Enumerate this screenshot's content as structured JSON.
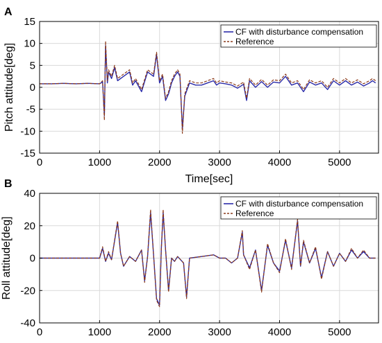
{
  "chart_data": [
    {
      "panel_label": "A",
      "type": "line",
      "xlabel": "Time[sec]",
      "ylabel": "Pitch attitude[deg]",
      "xlim": [
        0,
        5650
      ],
      "ylim": [
        -15,
        15
      ],
      "xticks": [
        "0",
        "1000",
        "2000",
        "3000",
        "4000",
        "5000"
      ],
      "xtick_values": [
        0,
        1000,
        2000,
        3000,
        4000,
        5000
      ],
      "yticks": [
        "-15",
        "-10",
        "-5",
        "0",
        "5",
        "10",
        "15"
      ],
      "ytick_values": [
        -15,
        -10,
        -5,
        0,
        5,
        10,
        15
      ],
      "grid": true,
      "legend_position": "top-right",
      "series": [
        {
          "name": "CF with disturbance compensation",
          "color": "#2a2aa8",
          "style": "solid",
          "x": [
            0,
            200,
            400,
            600,
            800,
            1000,
            1050,
            1080,
            1100,
            1130,
            1150,
            1200,
            1250,
            1300,
            1400,
            1500,
            1550,
            1600,
            1700,
            1800,
            1900,
            1950,
            2000,
            2050,
            2100,
            2150,
            2200,
            2250,
            2300,
            2340,
            2380,
            2420,
            2500,
            2600,
            2700,
            2800,
            2900,
            2950,
            3000,
            3100,
            3200,
            3300,
            3400,
            3450,
            3500,
            3600,
            3700,
            3800,
            3900,
            4000,
            4100,
            4200,
            4300,
            4400,
            4500,
            4600,
            4700,
            4800,
            4900,
            4950,
            5000,
            5100,
            5200,
            5300,
            5400,
            5500,
            5550,
            5600
          ],
          "y": [
            0.8,
            0.8,
            0.9,
            0.8,
            0.9,
            0.8,
            1.2,
            -6.5,
            9.5,
            1,
            3.5,
            2,
            4.5,
            1.5,
            2.5,
            3.5,
            0.5,
            1.5,
            -1,
            3.5,
            2.5,
            7.5,
            1,
            2.5,
            -3,
            -1.5,
            1,
            2.5,
            3.5,
            2.5,
            -9.5,
            -2,
            1,
            0.5,
            0.5,
            1,
            1.5,
            0.5,
            1,
            0.8,
            0.5,
            -0.2,
            0.7,
            -3,
            1.5,
            0,
            1.3,
            0,
            1.2,
            1,
            2.5,
            0.5,
            1,
            -1,
            1.2,
            0.5,
            1,
            -0.5,
            1.5,
            1,
            0.5,
            1.5,
            0.5,
            1.2,
            0.3,
            1,
            1.5,
            1
          ]
        },
        {
          "name": "Reference",
          "color": "#8b3a1a",
          "style": "dashed",
          "x": [
            0,
            200,
            400,
            600,
            800,
            1000,
            1050,
            1080,
            1100,
            1130,
            1150,
            1200,
            1250,
            1300,
            1400,
            1500,
            1550,
            1600,
            1700,
            1800,
            1900,
            1950,
            2000,
            2050,
            2100,
            2150,
            2200,
            2250,
            2300,
            2340,
            2380,
            2420,
            2500,
            2600,
            2700,
            2800,
            2900,
            2950,
            3000,
            3100,
            3200,
            3300,
            3400,
            3450,
            3500,
            3600,
            3700,
            3800,
            3900,
            4000,
            4100,
            4200,
            4300,
            4400,
            4500,
            4600,
            4700,
            4800,
            4900,
            4950,
            5000,
            5100,
            5200,
            5300,
            5400,
            5500,
            5550,
            5600
          ],
          "y": [
            0.8,
            0.8,
            0.9,
            0.8,
            0.9,
            0.8,
            1.5,
            -7.5,
            10.5,
            1.5,
            4,
            2.5,
            5,
            2,
            3,
            4,
            1,
            2,
            -0.5,
            4,
            3,
            8,
            1.5,
            3,
            -2.5,
            -1,
            1.5,
            3,
            4,
            3,
            -10.5,
            -1.5,
            1.5,
            1,
            1,
            1.5,
            2,
            1,
            1.5,
            1.2,
            1,
            0.3,
            1.2,
            -2.5,
            2,
            0.5,
            1.8,
            0.5,
            1.7,
            1.5,
            3,
            1,
            1.5,
            -0.5,
            1.7,
            1,
            1.5,
            0,
            2,
            1.5,
            1,
            2,
            1,
            1.7,
            0.8,
            1.5,
            2,
            1.5
          ]
        }
      ]
    },
    {
      "panel_label": "B",
      "type": "line",
      "xlabel": "",
      "ylabel": "Roll attitude[deg]",
      "xlim": [
        0,
        5650
      ],
      "ylim": [
        -40,
        40
      ],
      "xticks": [
        "0",
        "1000",
        "2000",
        "3000",
        "4000",
        "5000"
      ],
      "xtick_values": [
        0,
        1000,
        2000,
        3000,
        4000,
        5000
      ],
      "yticks": [
        "-40",
        "-20",
        "0",
        "20",
        "40"
      ],
      "ytick_values": [
        -40,
        -20,
        0,
        20,
        40
      ],
      "grid": true,
      "legend_position": "top-right",
      "series": [
        {
          "name": "CF with disturbance compensation",
          "color": "#2a2aa8",
          "style": "solid",
          "x": [
            0,
            500,
            1000,
            1050,
            1100,
            1150,
            1200,
            1300,
            1350,
            1400,
            1500,
            1600,
            1700,
            1750,
            1800,
            1850,
            1900,
            1950,
            2000,
            2030,
            2060,
            2100,
            2150,
            2200,
            2250,
            2300,
            2400,
            2450,
            2500,
            2700,
            2900,
            3000,
            3100,
            3200,
            3300,
            3380,
            3400,
            3500,
            3600,
            3700,
            3800,
            3900,
            4000,
            4100,
            4200,
            4300,
            4350,
            4400,
            4500,
            4600,
            4700,
            4800,
            4900,
            5000,
            5100,
            5200,
            5300,
            5400,
            5500,
            5600
          ],
          "y": [
            0,
            0,
            0,
            6,
            -2,
            3,
            -1,
            22,
            3,
            -5,
            1,
            -2,
            5,
            -14,
            1,
            28,
            2,
            -25,
            -29,
            6,
            28,
            5,
            -20,
            0,
            -2,
            1,
            -3,
            -24,
            0,
            1,
            2,
            0,
            0,
            -3,
            0,
            16,
            2,
            -6,
            5,
            -20,
            8,
            -3,
            -8,
            11,
            -6,
            23,
            -5,
            10,
            -3,
            6,
            -12,
            4,
            -5,
            3,
            -2,
            5,
            0,
            4,
            0,
            0
          ]
        },
        {
          "name": "Reference",
          "color": "#8b3a1a",
          "style": "dashed",
          "x": [
            0,
            500,
            1000,
            1050,
            1100,
            1150,
            1200,
            1300,
            1350,
            1400,
            1500,
            1600,
            1700,
            1750,
            1800,
            1850,
            1900,
            1950,
            2000,
            2030,
            2060,
            2100,
            2150,
            2200,
            2250,
            2300,
            2400,
            2450,
            2500,
            2700,
            2900,
            3000,
            3100,
            3200,
            3300,
            3380,
            3400,
            3500,
            3600,
            3700,
            3800,
            3900,
            4000,
            4100,
            4200,
            4300,
            4350,
            4400,
            4500,
            4600,
            4700,
            4800,
            4900,
            5000,
            5100,
            5200,
            5300,
            5400,
            5500,
            5600
          ],
          "y": [
            0,
            0,
            0,
            7,
            -2,
            4,
            -1,
            23,
            3,
            -5,
            1,
            -2,
            5,
            -15,
            1,
            30,
            2,
            -26,
            -30,
            6,
            30,
            5,
            -21,
            0,
            -2,
            1,
            -3,
            -25,
            0,
            1,
            2,
            0,
            0,
            -3,
            0,
            17,
            2,
            -7,
            5,
            -21,
            9,
            -3,
            -9,
            12,
            -7,
            24,
            -5,
            11,
            -3,
            7,
            -13,
            4,
            -5,
            3,
            -2,
            6,
            0,
            5,
            0,
            0
          ]
        }
      ]
    }
  ]
}
